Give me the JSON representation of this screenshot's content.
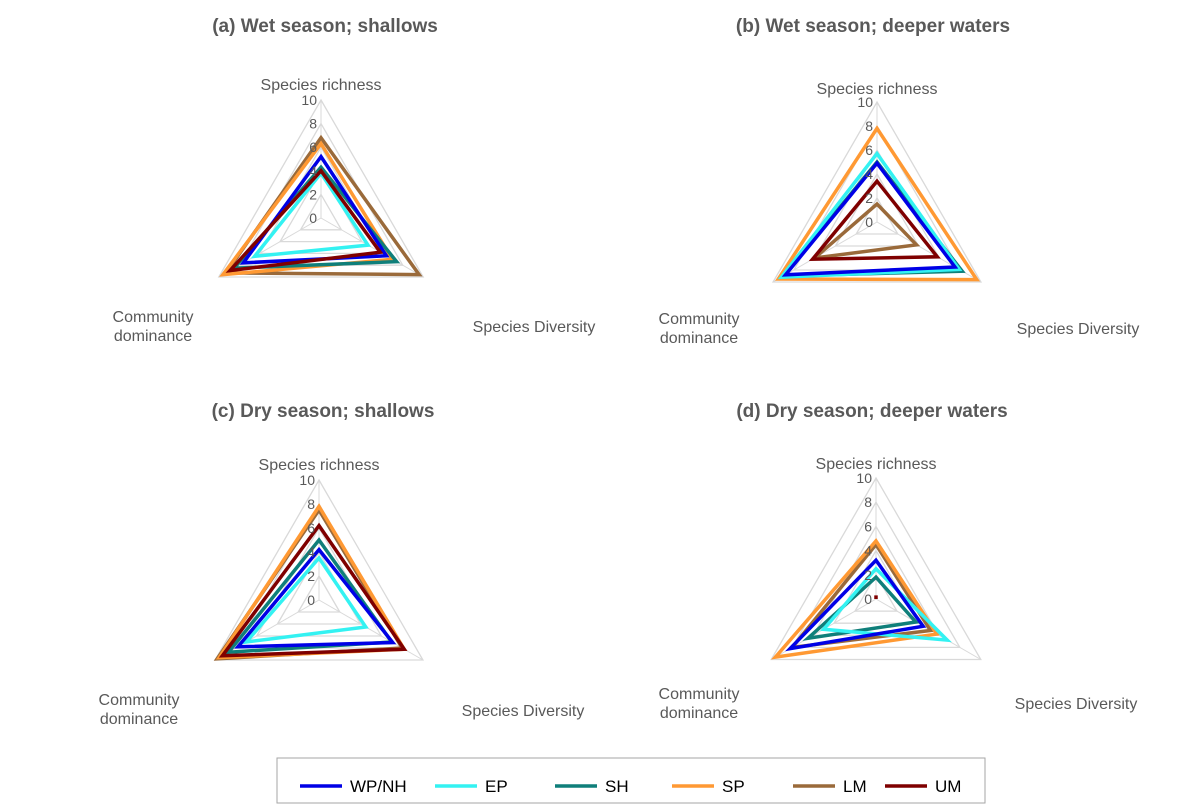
{
  "chart_data": [
    {
      "type": "radar",
      "title": "(a) Wet season; shallows",
      "axes": [
        "Species richness",
        "Species Diversity",
        "Community dominance"
      ],
      "axis_label_lines": {
        "Species richness": [
          "Species richness"
        ],
        "Species Diversity": [
          "Species Diversity"
        ],
        "Community dominance": [
          "Community",
          "dominance"
        ]
      },
      "ticks": [
        "0",
        "2",
        "4",
        "6",
        "8",
        "10"
      ],
      "range": [
        0,
        10
      ],
      "series": [
        {
          "name": "WP/NH",
          "values": [
            5.2,
            6.4,
            7.6
          ]
        },
        {
          "name": "EP",
          "values": [
            3.8,
            4.6,
            6.5
          ]
        },
        {
          "name": "SH",
          "values": [
            4.3,
            7.4,
            8.5
          ]
        },
        {
          "name": "SP",
          "values": [
            6.3,
            7.0,
            9.6
          ]
        },
        {
          "name": "LM",
          "values": [
            6.8,
            9.6,
            9.3
          ]
        },
        {
          "name": "UM",
          "values": [
            4.0,
            5.8,
            8.9
          ]
        }
      ]
    },
    {
      "type": "radar",
      "title": "(b) Wet season; deeper waters",
      "axes": [
        "Species richness",
        "Species Diversity",
        "Community dominance"
      ],
      "axis_label_lines": {
        "Species richness": [
          "Species richness"
        ],
        "Species Diversity": [
          "Species Diversity"
        ],
        "Community dominance": [
          "Community",
          "dominance"
        ]
      },
      "ticks": [
        "0",
        "2",
        "4",
        "6",
        "8",
        "10"
      ],
      "range": [
        0,
        10
      ],
      "series": [
        {
          "name": "WP/NH",
          "values": [
            4.9,
            7.5,
            8.8
          ]
        },
        {
          "name": "EP",
          "values": [
            5.7,
            7.9,
            9.2
          ]
        },
        {
          "name": "SH",
          "values": [
            5.0,
            8.2,
            9.0
          ]
        },
        {
          "name": "SP",
          "values": [
            7.8,
            9.6,
            9.5
          ]
        },
        {
          "name": "LM",
          "values": [
            1.5,
            3.8,
            6.0
          ]
        },
        {
          "name": "UM",
          "values": [
            3.4,
            5.8,
            6.2
          ]
        }
      ]
    },
    {
      "type": "radar",
      "title": "(c) Dry season; shallows",
      "axes": [
        "Species richness",
        "Species Diversity",
        "Community dominance"
      ],
      "axis_label_lines": {
        "Species richness": [
          "Species richness"
        ],
        "Species Diversity": [
          "Species Diversity"
        ],
        "Community dominance": [
          "Community",
          "dominance"
        ]
      },
      "ticks": [
        "0",
        "2",
        "4",
        "6",
        "8",
        "10"
      ],
      "range": [
        0,
        10
      ],
      "series": [
        {
          "name": "WP/NH",
          "values": [
            4.2,
            7.1,
            7.8
          ]
        },
        {
          "name": "EP",
          "values": [
            3.5,
            4.5,
            7.0
          ]
        },
        {
          "name": "SH",
          "values": [
            5.0,
            7.0,
            8.7
          ]
        },
        {
          "name": "SP",
          "values": [
            7.8,
            8.2,
            9.6
          ]
        },
        {
          "name": "LM",
          "values": [
            7.5,
            8.0,
            9.8
          ]
        },
        {
          "name": "UM",
          "values": [
            6.2,
            8.2,
            9.3
          ]
        }
      ]
    },
    {
      "type": "radar",
      "title": "(d) Dry season; deeper waters",
      "axes": [
        "Species richness",
        "Species Diversity",
        "Community dominance"
      ],
      "axis_label_lines": {
        "Species richness": [
          "Species richness"
        ],
        "Species Diversity": [
          "Species Diversity"
        ],
        "Community dominance": [
          "Community",
          "dominance"
        ]
      },
      "ticks": [
        "0",
        "2",
        "4",
        "6",
        "8",
        "10"
      ],
      "range": [
        0,
        10
      ],
      "series": [
        {
          "name": "WP/NH",
          "values": [
            3.2,
            4.5,
            8.2
          ]
        },
        {
          "name": "EP",
          "values": [
            2.5,
            6.8,
            5.0
          ]
        },
        {
          "name": "SH",
          "values": [
            1.8,
            3.8,
            6.5
          ]
        },
        {
          "name": "SP",
          "values": [
            4.8,
            5.8,
            9.6
          ]
        },
        {
          "name": "LM",
          "values": [
            4.5,
            5.2,
            8.0
          ]
        },
        {
          "name": "UM",
          "values": [
            0.3,
            0.0,
            0.0
          ]
        }
      ]
    }
  ],
  "legend": {
    "position": "bottom",
    "items": [
      {
        "name": "WP/NH",
        "color": "#0000e6"
      },
      {
        "name": "EP",
        "color": "#33f2f2"
      },
      {
        "name": "SH",
        "color": "#0f7f7a"
      },
      {
        "name": "SP",
        "color": "#ff9933"
      },
      {
        "name": "LM",
        "color": "#9a6a3a"
      },
      {
        "name": "UM",
        "color": "#7f0000"
      }
    ]
  },
  "grid_color": "#d9d9d9"
}
